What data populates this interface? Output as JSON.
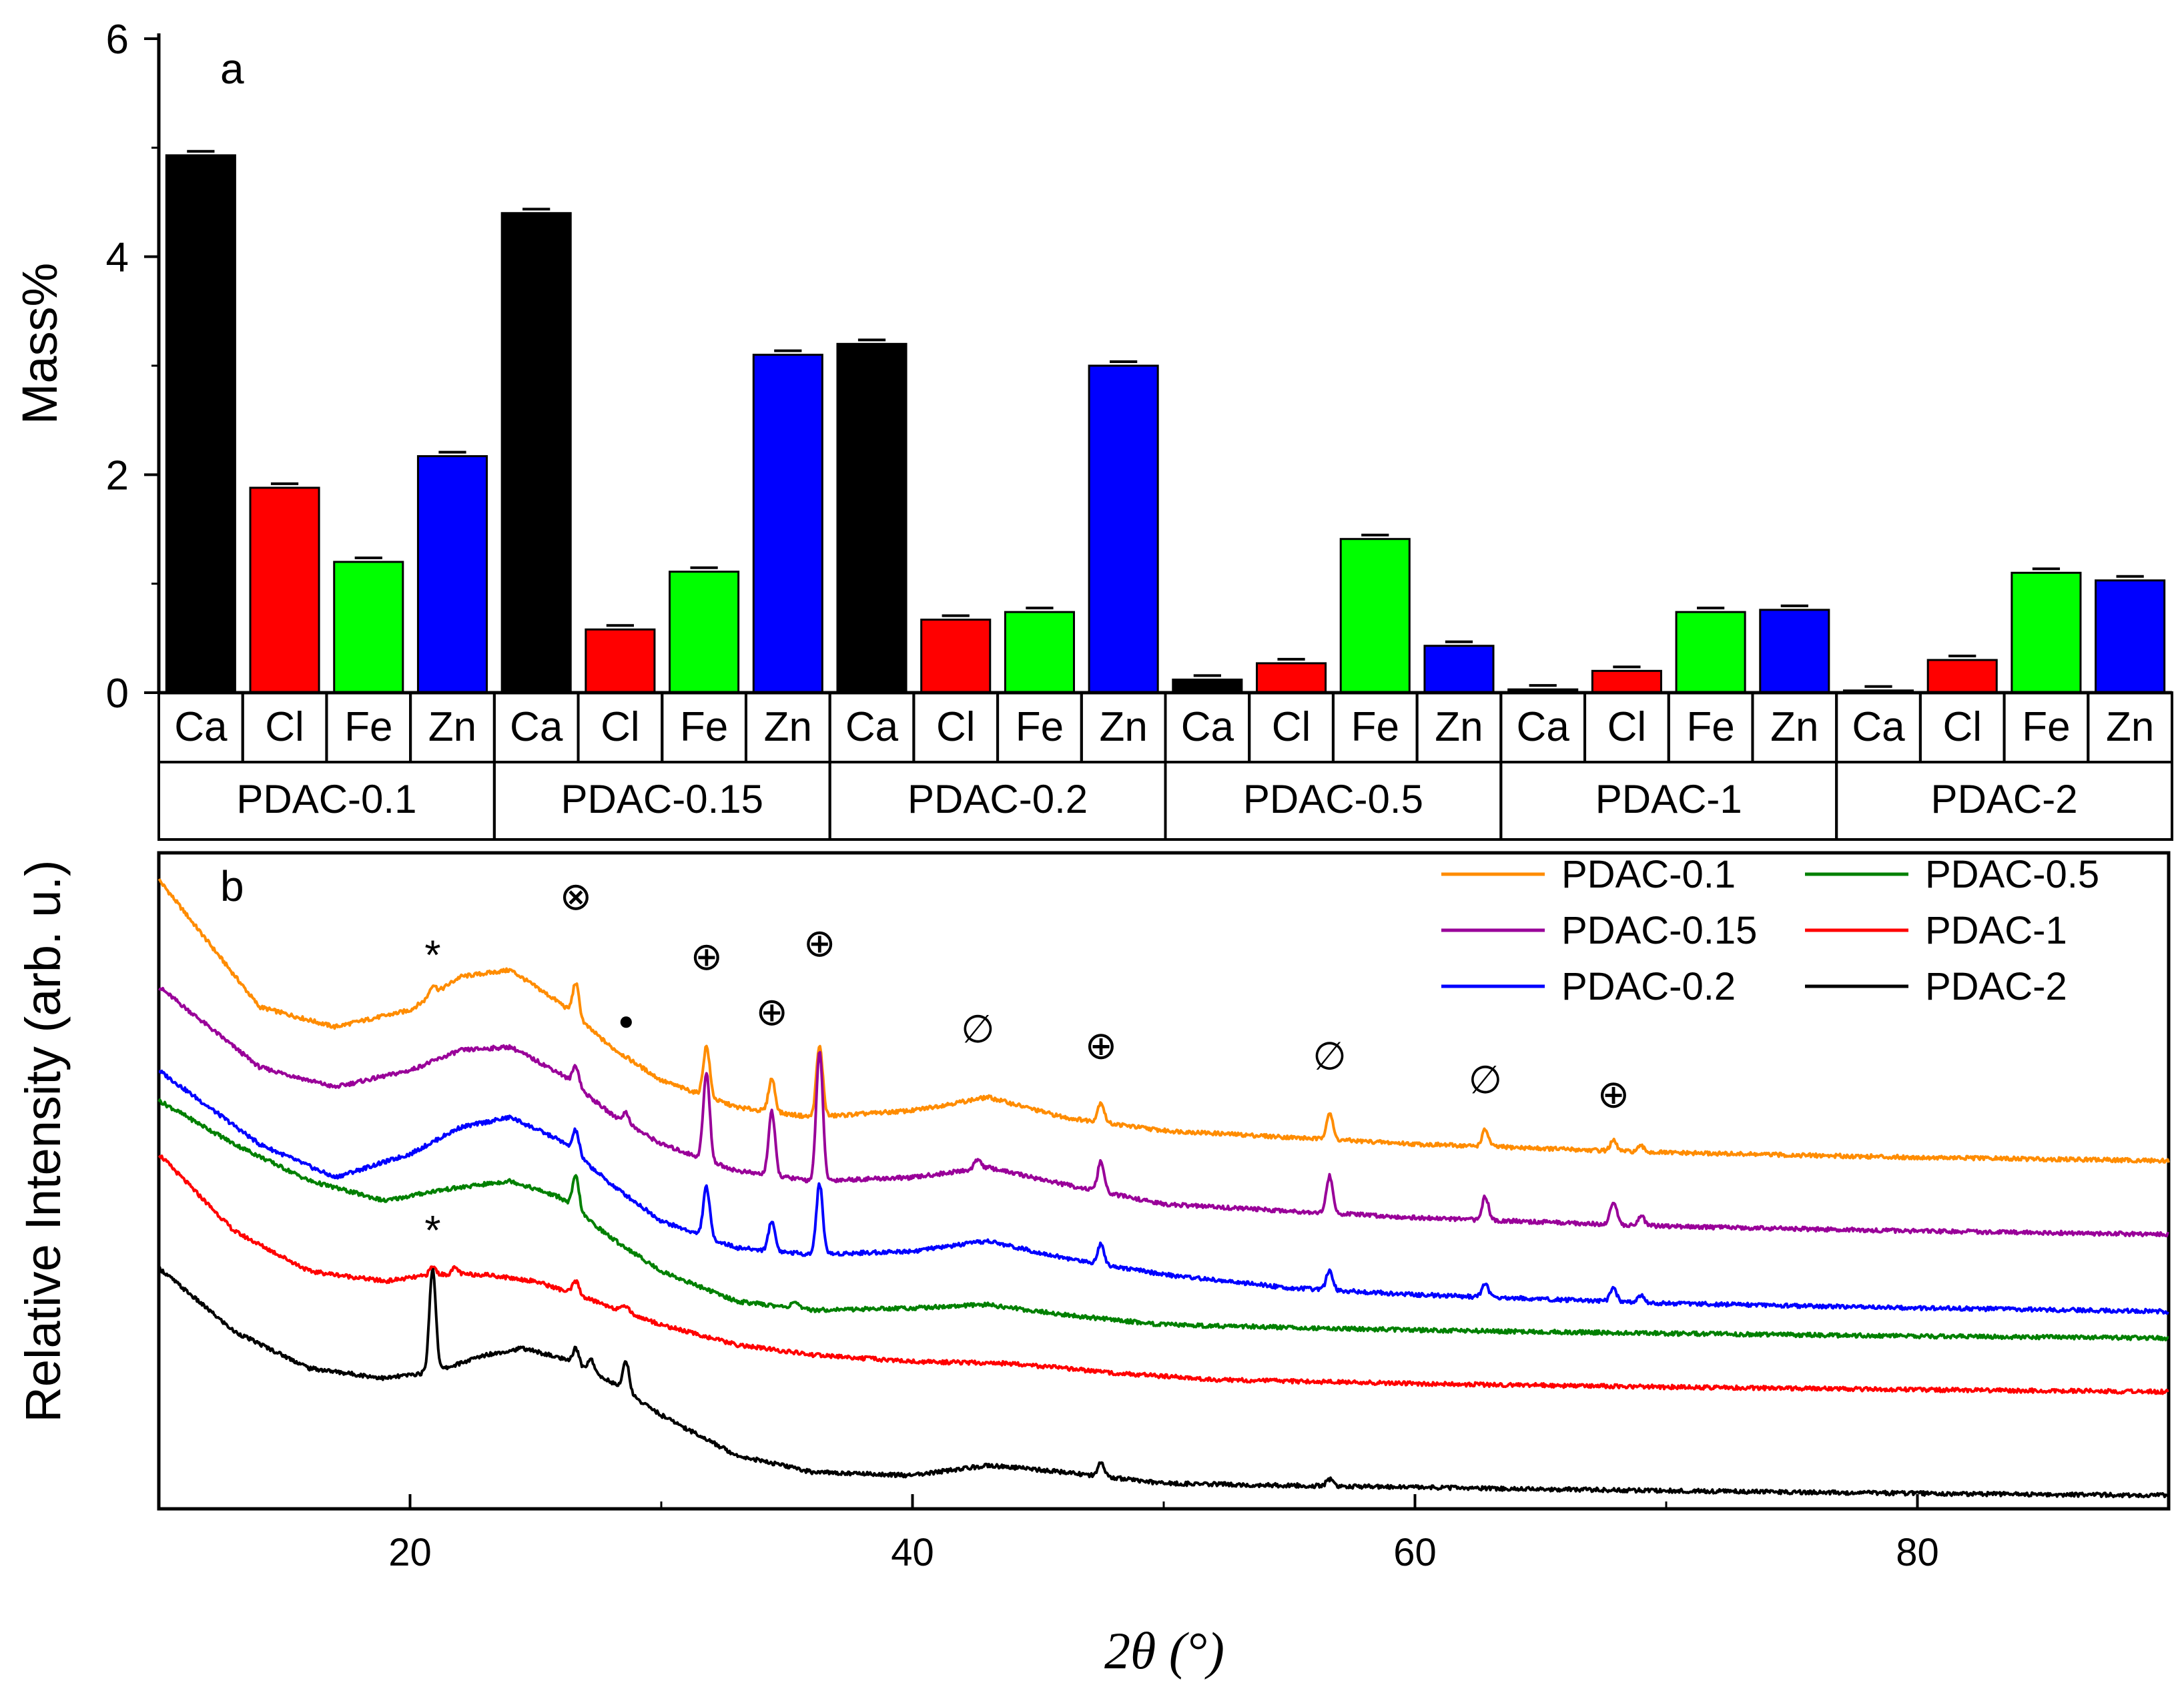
{
  "chart_data": [
    {
      "type": "bar",
      "panel_label": "a",
      "ylabel": "Mass%",
      "ylim": [
        0,
        6
      ],
      "yticks": [
        "0",
        "2",
        "4",
        "6"
      ],
      "elements": [
        "Ca",
        "Cl",
        "Fe",
        "Zn"
      ],
      "element_colors": {
        "Ca": "#000000",
        "Cl": "#ff0000",
        "Fe": "#00ff00",
        "Zn": "#0000ff"
      },
      "groups": [
        {
          "name": "PDAC-0.1",
          "values": [
            4.93,
            1.88,
            1.2,
            2.17
          ]
        },
        {
          "name": "PDAC-0.15",
          "values": [
            4.4,
            0.58,
            1.11,
            3.1
          ]
        },
        {
          "name": "PDAC-0.2",
          "values": [
            3.2,
            0.67,
            0.74,
            3.0
          ]
        },
        {
          "name": "PDAC-0.5",
          "values": [
            0.12,
            0.27,
            1.41,
            0.43
          ]
        },
        {
          "name": "PDAC-1",
          "values": [
            0.03,
            0.2,
            0.74,
            0.76
          ]
        },
        {
          "name": "PDAC-2",
          "values": [
            0.02,
            0.3,
            1.1,
            1.03
          ]
        }
      ]
    },
    {
      "type": "line",
      "panel_label": "b",
      "xlabel": "2θ (°)",
      "ylabel": "Relative Intensity (arb. u.)",
      "xlim": [
        10,
        90
      ],
      "xticks": [
        "20",
        "40",
        "60",
        "80"
      ],
      "series": [
        {
          "name": "PDAC-0.1",
          "color": "#ff8c00",
          "offset": 5.0,
          "baseline": [
            [
              10,
              4.2
            ],
            [
              14,
              2.3
            ],
            [
              17,
              2.0
            ],
            [
              20,
              2.25
            ],
            [
              22,
              2.75
            ],
            [
              24,
              2.85
            ],
            [
              26,
              2.35
            ],
            [
              28,
              1.7
            ],
            [
              30,
              1.2
            ],
            [
              33,
              0.8
            ],
            [
              36,
              0.65
            ],
            [
              40,
              0.75
            ],
            [
              43,
              0.95
            ],
            [
              46,
              0.65
            ],
            [
              50,
              0.45
            ],
            [
              55,
              0.35
            ],
            [
              60,
              0.25
            ],
            [
              70,
              0.12
            ],
            [
              80,
              0.05
            ],
            [
              90,
              0.0
            ]
          ],
          "peaks": [
            [
              20.9,
              0.15
            ],
            [
              26.6,
              0.5
            ],
            [
              31.8,
              0.75
            ],
            [
              34.4,
              0.5
            ],
            [
              36.3,
              1.05
            ],
            [
              47.5,
              0.3
            ],
            [
              56.6,
              0.4
            ],
            [
              62.8,
              0.25
            ],
            [
              67.9,
              0.15
            ],
            [
              69.0,
              0.08
            ]
          ]
        },
        {
          "name": "PDAC-0.15",
          "color": "#990099",
          "offset": 3.9,
          "baseline": [
            [
              10,
              3.7
            ],
            [
              14,
              2.5
            ],
            [
              17,
              2.2
            ],
            [
              20,
              2.45
            ],
            [
              22,
              2.75
            ],
            [
              24,
              2.8
            ],
            [
              26,
              2.4
            ],
            [
              28,
              1.8
            ],
            [
              30,
              1.35
            ],
            [
              33,
              0.95
            ],
            [
              36,
              0.8
            ],
            [
              40,
              0.85
            ],
            [
              43,
              1.0
            ],
            [
              46,
              0.75
            ],
            [
              50,
              0.45
            ],
            [
              55,
              0.35
            ],
            [
              60,
              0.25
            ],
            [
              70,
              0.12
            ],
            [
              80,
              0.05
            ],
            [
              90,
              0.0
            ]
          ],
          "peaks": [
            [
              26.6,
              0.3
            ],
            [
              28.6,
              0.15
            ],
            [
              31.8,
              1.3
            ],
            [
              34.4,
              0.95
            ],
            [
              36.3,
              1.95
            ],
            [
              42.6,
              0.15
            ],
            [
              47.5,
              0.45
            ],
            [
              56.6,
              0.55
            ],
            [
              62.8,
              0.35
            ],
            [
              67.9,
              0.35
            ],
            [
              69.0,
              0.15
            ]
          ]
        },
        {
          "name": "PDAC-0.2",
          "color": "#0000ff",
          "offset": 2.75,
          "baseline": [
            [
              10,
              3.6
            ],
            [
              14,
              2.5
            ],
            [
              17,
              2.0
            ],
            [
              20,
              2.35
            ],
            [
              22,
              2.75
            ],
            [
              24,
              2.9
            ],
            [
              26,
              2.55
            ],
            [
              28,
              1.9
            ],
            [
              30,
              1.35
            ],
            [
              33,
              0.95
            ],
            [
              36,
              0.85
            ],
            [
              40,
              0.9
            ],
            [
              43,
              1.05
            ],
            [
              46,
              0.8
            ],
            [
              50,
              0.55
            ],
            [
              55,
              0.35
            ],
            [
              60,
              0.25
            ],
            [
              70,
              0.12
            ],
            [
              80,
              0.05
            ],
            [
              90,
              0.0
            ]
          ],
          "peaks": [
            [
              26.6,
              0.35
            ],
            [
              31.8,
              0.75
            ],
            [
              34.4,
              0.45
            ],
            [
              36.3,
              1.05
            ],
            [
              47.5,
              0.3
            ],
            [
              56.6,
              0.3
            ],
            [
              62.8,
              0.2
            ],
            [
              67.9,
              0.2
            ],
            [
              69.0,
              0.1
            ]
          ]
        },
        {
          "name": "PDAC-0.5",
          "color": "#008000",
          "offset": 2.35,
          "baseline": [
            [
              10,
              3.55
            ],
            [
              13,
              2.9
            ],
            [
              16,
              2.35
            ],
            [
              19,
              2.05
            ],
            [
              21,
              2.2
            ],
            [
              24,
              2.35
            ],
            [
              26,
              2.1
            ],
            [
              28,
              1.5
            ],
            [
              30,
              1.0
            ],
            [
              33,
              0.55
            ],
            [
              36,
              0.42
            ],
            [
              40,
              0.45
            ],
            [
              43,
              0.5
            ],
            [
              46,
              0.35
            ],
            [
              50,
              0.2
            ],
            [
              60,
              0.12
            ],
            [
              70,
              0.07
            ],
            [
              80,
              0.03
            ],
            [
              90,
              0.0
            ]
          ],
          "peaks": [
            [
              26.6,
              0.5
            ],
            [
              35.3,
              0.1
            ]
          ]
        },
        {
          "name": "PDAC-1",
          "color": "#ff0000",
          "offset": 1.55,
          "baseline": [
            [
              10,
              3.55
            ],
            [
              13,
              2.4
            ],
            [
              16,
              1.8
            ],
            [
              19,
              1.65
            ],
            [
              21,
              1.75
            ],
            [
              23,
              1.75
            ],
            [
              25,
              1.65
            ],
            [
              27,
              1.4
            ],
            [
              30,
              1.0
            ],
            [
              33,
              0.7
            ],
            [
              36,
              0.55
            ],
            [
              40,
              0.45
            ],
            [
              44,
              0.42
            ],
            [
              48,
              0.28
            ],
            [
              52,
              0.18
            ],
            [
              60,
              0.12
            ],
            [
              70,
              0.07
            ],
            [
              80,
              0.03
            ],
            [
              90,
              0.0
            ]
          ],
          "peaks": [
            [
              20.9,
              0.12
            ],
            [
              21.8,
              0.1
            ],
            [
              26.6,
              0.2
            ],
            [
              28.6,
              0.1
            ]
          ]
        },
        {
          "name": "PDAC-2",
          "color": "#000000",
          "offset": 0.0,
          "baseline": [
            [
              10,
              3.4
            ],
            [
              13,
              2.45
            ],
            [
              16,
              1.9
            ],
            [
              19,
              1.75
            ],
            [
              21,
              1.85
            ],
            [
              23,
              2.1
            ],
            [
              24.5,
              2.2
            ],
            [
              26,
              2.05
            ],
            [
              28,
              1.7
            ],
            [
              30,
              1.2
            ],
            [
              33,
              0.6
            ],
            [
              36,
              0.35
            ],
            [
              40,
              0.3
            ],
            [
              43,
              0.45
            ],
            [
              46,
              0.35
            ],
            [
              50,
              0.18
            ],
            [
              60,
              0.12
            ],
            [
              70,
              0.07
            ],
            [
              80,
              0.03
            ],
            [
              90,
              0.0
            ]
          ],
          "peaks": [
            [
              20.9,
              1.55
            ],
            [
              26.6,
              0.25
            ],
            [
              27.2,
              0.2
            ],
            [
              28.6,
              0.45
            ],
            [
              47.5,
              0.2
            ],
            [
              56.6,
              0.1
            ]
          ]
        }
      ],
      "annotations": [
        {
          "symbol": "*",
          "x": 20.9,
          "series": "PDAC-0.1",
          "dy": 0.45
        },
        {
          "symbol": "⊗",
          "x": 26.6,
          "series": "PDAC-0.1",
          "dy": 1.3
        },
        {
          "symbol": "●",
          "x": 28.6,
          "series": "PDAC-0.1",
          "dy": 0.55
        },
        {
          "symbol": "⊕",
          "x": 31.8,
          "series": "PDAC-0.1",
          "dy": 1.35
        },
        {
          "symbol": "⊕",
          "x": 34.4,
          "series": "PDAC-0.1",
          "dy": 1.0
        },
        {
          "symbol": "⊕",
          "x": 36.3,
          "series": "PDAC-0.1",
          "dy": 1.55
        },
        {
          "symbol": "∅",
          "x": 42.6,
          "series": "PDAC-0.1",
          "dy": 1.05
        },
        {
          "symbol": "⊕",
          "x": 47.5,
          "series": "PDAC-0.1",
          "dy": 0.85
        },
        {
          "symbol": "∅",
          "x": 56.6,
          "series": "PDAC-0.1",
          "dy": 0.85
        },
        {
          "symbol": "∅",
          "x": 62.8,
          "series": "PDAC-0.1",
          "dy": 0.75
        },
        {
          "symbol": "⊕",
          "x": 67.9,
          "series": "PDAC-0.1",
          "dy": 0.7
        },
        {
          "symbol": "*",
          "x": 20.9,
          "series": "PDAC-1",
          "dy": 0.55
        }
      ]
    }
  ]
}
